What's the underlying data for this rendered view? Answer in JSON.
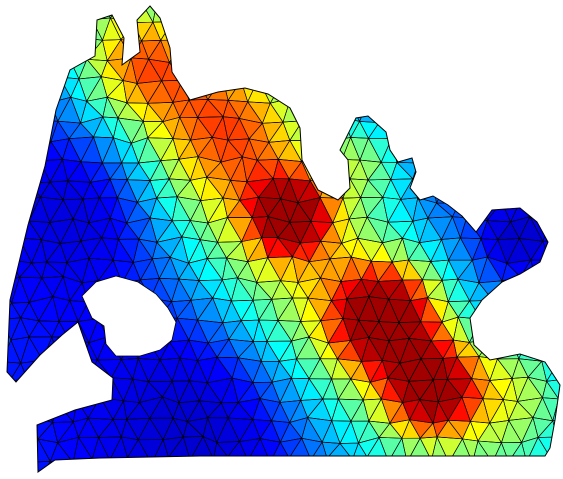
{
  "figure": {
    "type": "finite-element mesh contour plot",
    "colormap": "jet",
    "colormap_stops": [
      "#00008f",
      "#0000ff",
      "#00ffff",
      "#ffff00",
      "#ff0000",
      "#800000"
    ],
    "background": "#ffffff",
    "edge_color": "#000000",
    "hole_color": "#ffffff",
    "title": "",
    "colorbar": false
  }
}
